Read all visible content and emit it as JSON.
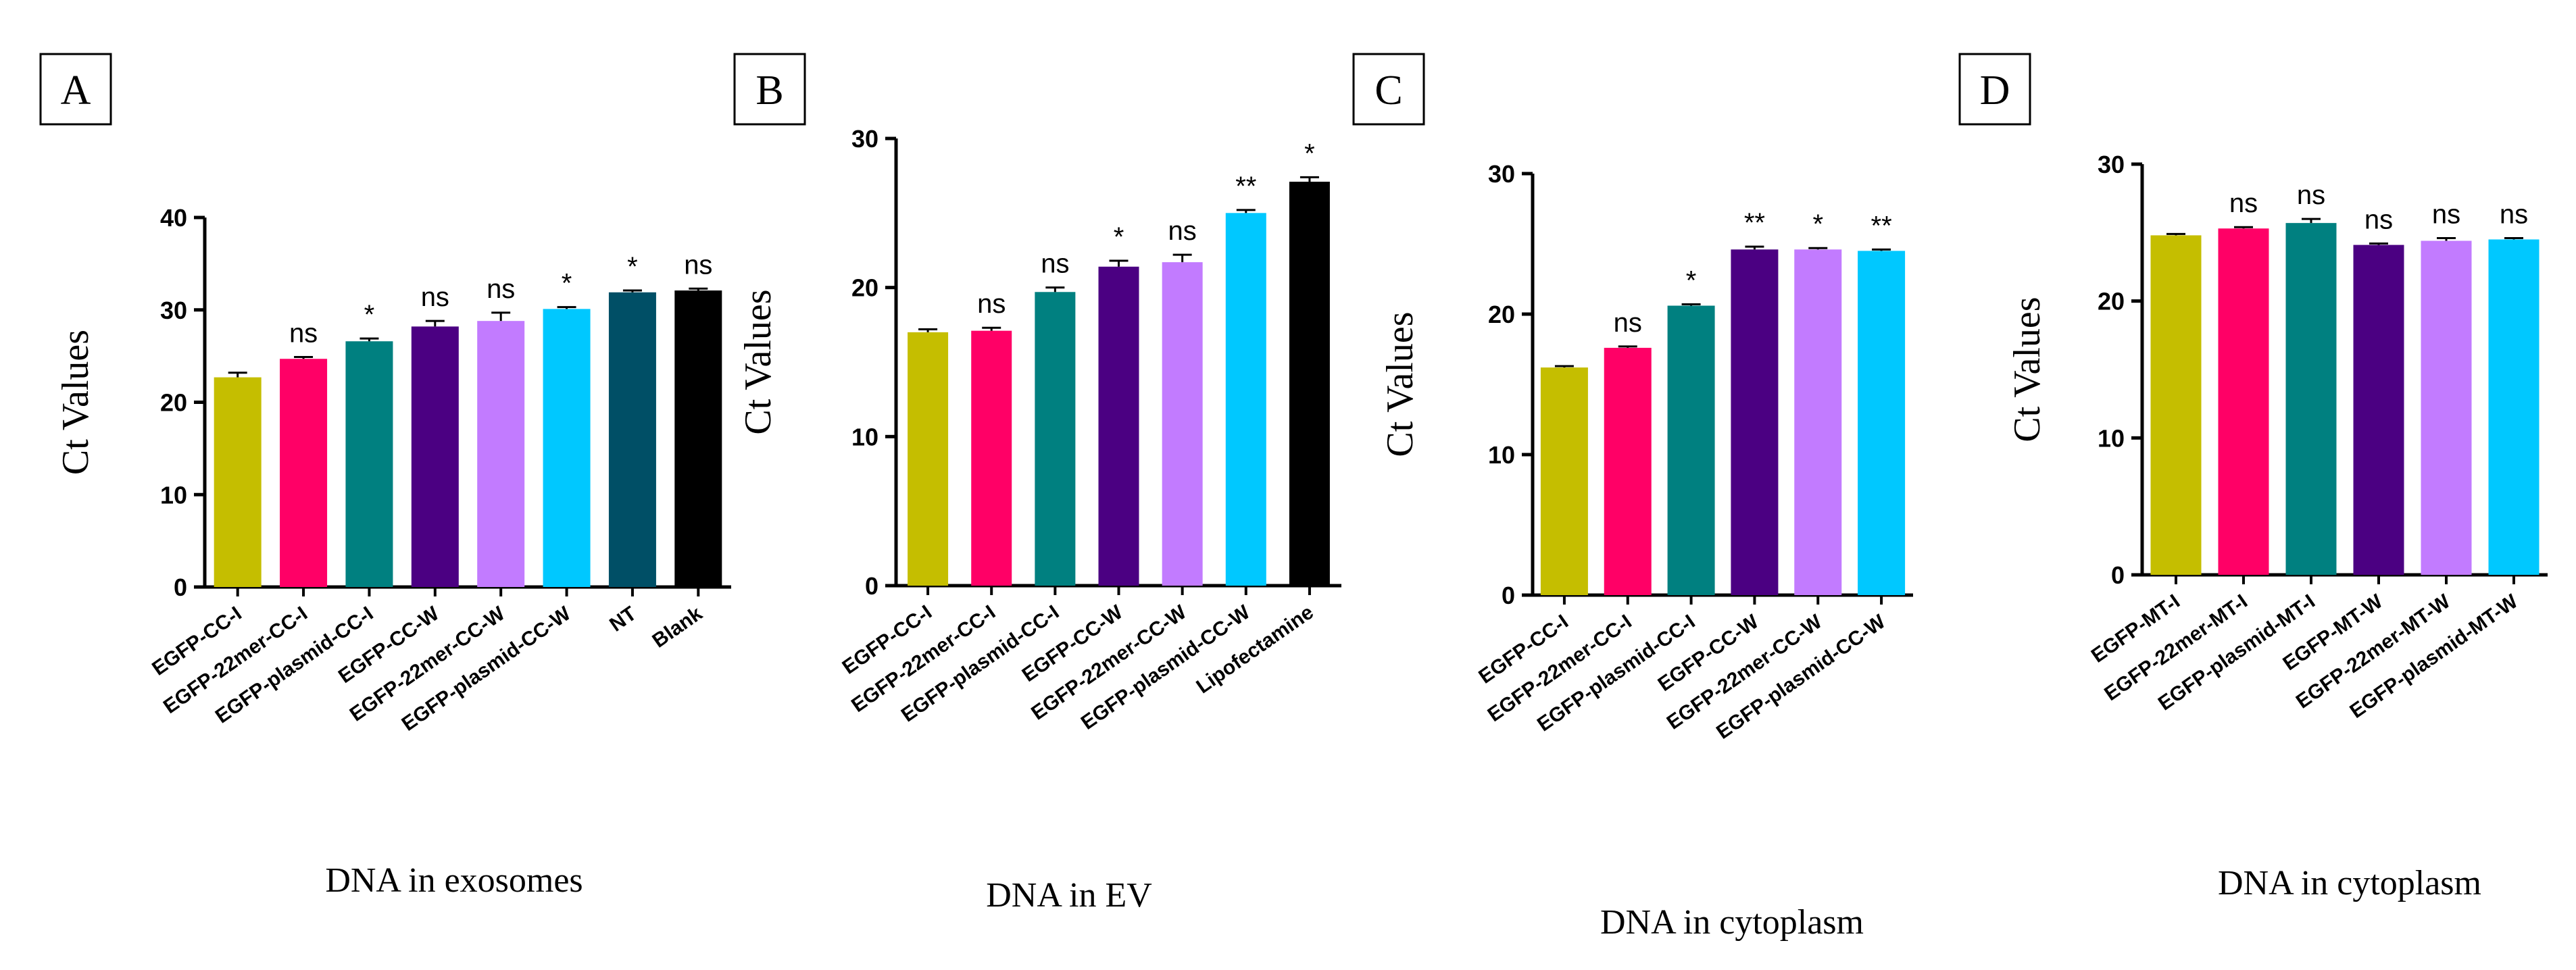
{
  "chart_data": [
    {
      "panel": "A",
      "type": "bar",
      "title": "",
      "xlabel": "DNA in exosomes",
      "ylabel": "Ct Values",
      "ylim": [
        0,
        40
      ],
      "yticks": [
        "0",
        "10",
        "20",
        "30",
        "40"
      ],
      "categories": [
        "EGFP-CC-I",
        "EGFP-22mer-CC-I",
        "EGFP-plasmid-CC-I",
        "EGFP-CC-W",
        "EGFP-22mer-CC-W",
        "EGFP-plasmid-CC-W",
        "NT",
        "Blank"
      ],
      "values": [
        22.7,
        24.7,
        26.6,
        28.2,
        28.8,
        30.1,
        31.9,
        32.1
      ],
      "errors": [
        0.5,
        0.2,
        0.3,
        0.6,
        0.9,
        0.2,
        0.2,
        0.2
      ],
      "significance": [
        "",
        "ns",
        "*",
        "ns",
        "ns",
        "*",
        "*",
        "ns"
      ],
      "colors": [
        "#c5be00",
        "#ff0066",
        "#008080",
        "#4b0082",
        "#c27bff",
        "#00c8ff",
        "#004f66",
        "#000000"
      ],
      "grid": false,
      "legend": "none"
    },
    {
      "panel": "B",
      "type": "bar",
      "title": "",
      "xlabel": "DNA in EV",
      "ylabel": "Ct Values",
      "ylim": [
        0,
        30
      ],
      "yticks": [
        "0",
        "10",
        "20",
        "30"
      ],
      "categories": [
        "EGFP-CC-I",
        "EGFP-22mer-CC-I",
        "EGFP-plasmid-CC-I",
        "EGFP-CC-W",
        "EGFP-22mer-CC-W",
        "EGFP-plasmid-CC-W",
        "Lipofectamine"
      ],
      "values": [
        17.0,
        17.1,
        19.7,
        21.4,
        21.7,
        25.0,
        27.1
      ],
      "errors": [
        0.2,
        0.2,
        0.3,
        0.4,
        0.5,
        0.2,
        0.3
      ],
      "significance": [
        "",
        "ns",
        "ns",
        "*",
        "ns",
        "**",
        "*"
      ],
      "colors": [
        "#c5be00",
        "#ff0066",
        "#008080",
        "#4b0082",
        "#c27bff",
        "#00c8ff",
        "#000000"
      ],
      "grid": false,
      "legend": "none"
    },
    {
      "panel": "C",
      "type": "bar",
      "title": "",
      "xlabel": "DNA in cytoplasm",
      "ylabel": "Ct Values",
      "ylim": [
        0,
        30
      ],
      "yticks": [
        "0",
        "10",
        "20",
        "30"
      ],
      "categories": [
        "EGFP-CC-I",
        "EGFP-22mer-CC-I",
        "EGFP-plasmid-CC-I",
        "EGFP-CC-W",
        "EGFP-22mer-CC-W",
        "EGFP-plasmid-CC-W"
      ],
      "values": [
        16.2,
        17.6,
        20.6,
        24.6,
        24.6,
        24.5
      ],
      "errors": [
        0.1,
        0.1,
        0.1,
        0.2,
        0.1,
        0.1
      ],
      "significance": [
        "",
        "ns",
        "*",
        "**",
        "*",
        "**"
      ],
      "colors": [
        "#c5be00",
        "#ff0066",
        "#008080",
        "#4b0082",
        "#c27bff",
        "#00c8ff"
      ],
      "grid": false,
      "legend": "none"
    },
    {
      "panel": "D",
      "type": "bar",
      "title": "",
      "xlabel": "DNA in cytoplasm",
      "ylabel": "Ct Values",
      "ylim": [
        0,
        30
      ],
      "yticks": [
        "0",
        "10",
        "20",
        "30"
      ],
      "categories": [
        "EGFP-MT-I",
        "EGFP-22mer-MT-I",
        "EGFP-plasmid-MT-I",
        "EGFP-MT-W",
        "EGFP-22mer-MT-W",
        "EGFP-plasmid-MT-W"
      ],
      "values": [
        24.8,
        25.3,
        25.7,
        24.1,
        24.4,
        24.5
      ],
      "errors": [
        0.1,
        0.1,
        0.3,
        0.1,
        0.2,
        0.1
      ],
      "significance": [
        "",
        "ns",
        "ns",
        "ns",
        "ns",
        "ns"
      ],
      "colors": [
        "#c5be00",
        "#ff0066",
        "#008080",
        "#4b0082",
        "#c27bff",
        "#00c8ff"
      ],
      "grid": false,
      "legend": "none"
    }
  ]
}
